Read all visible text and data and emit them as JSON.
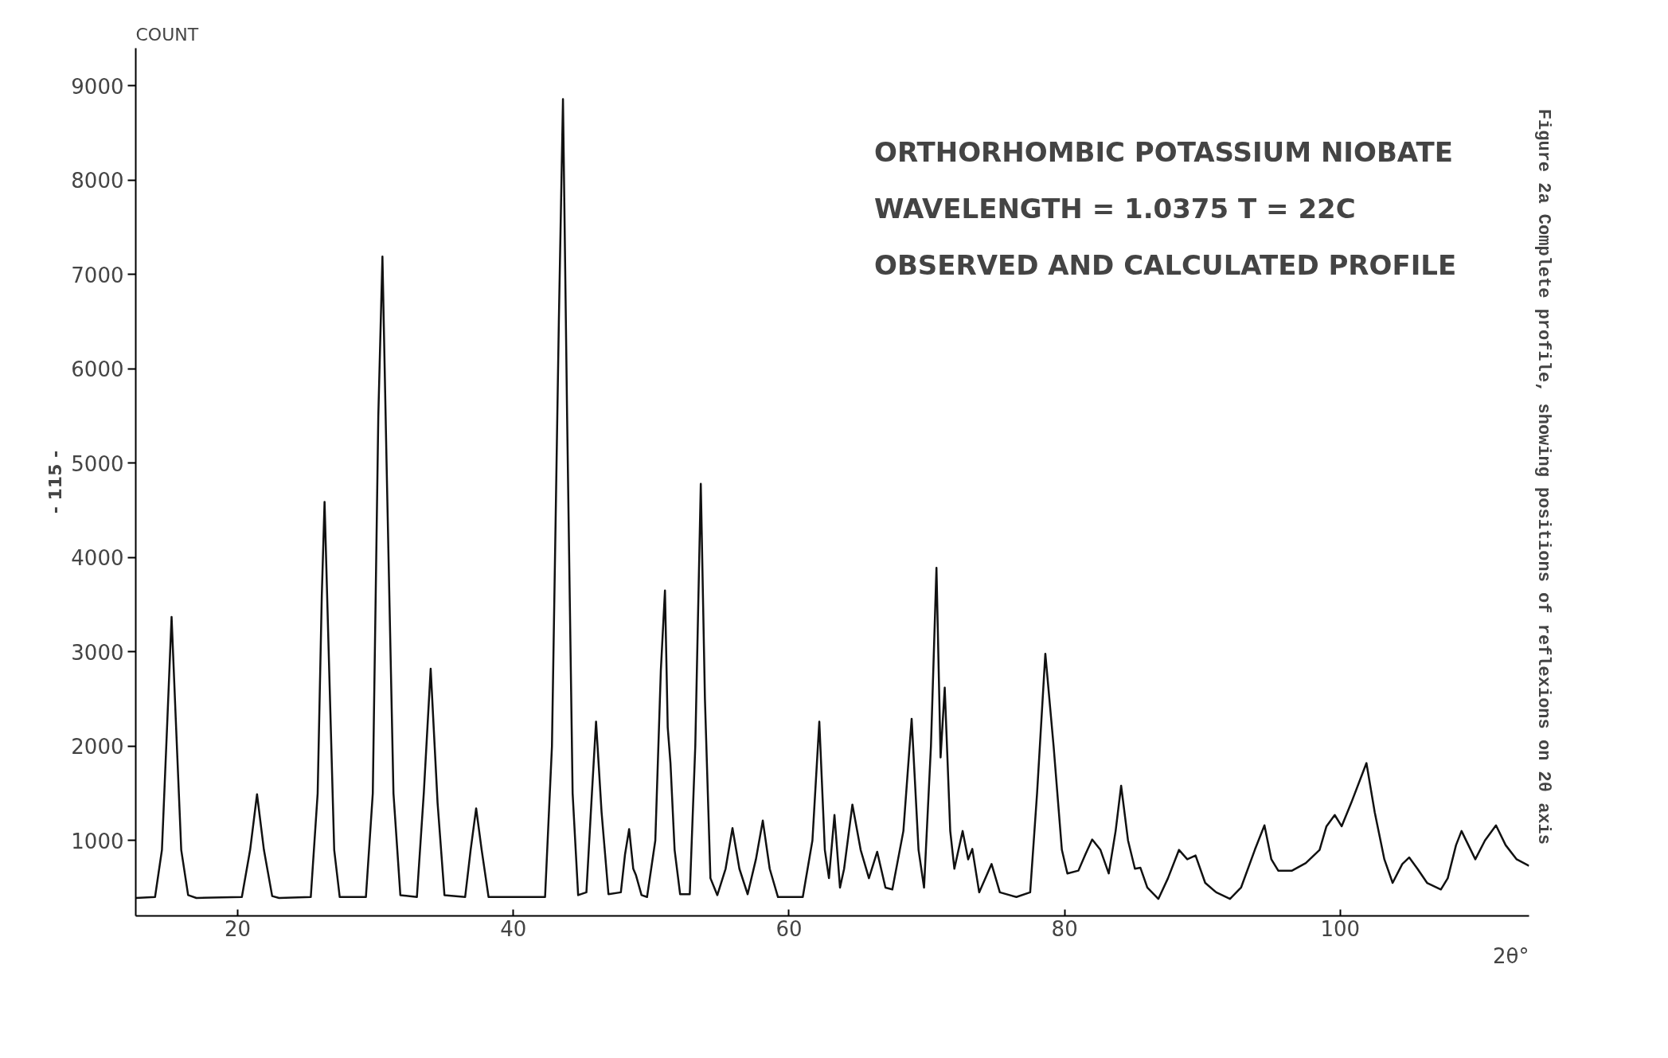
{
  "chart_data": {
    "type": "line",
    "ylabel": "COUNT",
    "xlabel": "2θ°",
    "annotations": [
      "ORTHORHOMBIC  POTASSIUM  NIOBATE",
      "WAVELENGTH = 1.0375     T = 22C",
      "OBSERVED  AND  CALCULATED  PROFILE",
      "Figure 2a  Complete profile, showing positions of reflexions on 2θ axis",
      "- 115 -"
    ],
    "xlim": [
      12.6,
      113.7
    ],
    "ylim": [
      200,
      9400
    ],
    "xticks": [
      20,
      40,
      60,
      80,
      100
    ],
    "yticks": [
      1000,
      2000,
      3000,
      4000,
      5000,
      6000,
      7000,
      8000,
      9000
    ],
    "grid": false,
    "marker": "none",
    "line_style": "solid",
    "series": [
      {
        "color": "#111111",
        "x": [
          12.6,
          14.0,
          14.5,
          14.9,
          15.2,
          15.5,
          15.9,
          16.4,
          17,
          20.3,
          20.9,
          21.4,
          21.9,
          22.5,
          23,
          25.3,
          25.8,
          26.1,
          26.3,
          26.6,
          27,
          27.4,
          29.3,
          29.8,
          30.2,
          30.5,
          30.8,
          31.3,
          31.8,
          33.0,
          33.5,
          34.0,
          34.5,
          35.0,
          36.5,
          36.9,
          37.3,
          37.7,
          38.2,
          42.3,
          42.8,
          43.3,
          43.6,
          43.9,
          44.3,
          44.7,
          45.3,
          45.7,
          46.0,
          46.4,
          46.9,
          47.8,
          48.1,
          48.4,
          48.7,
          48.9,
          49.3,
          49.7,
          50.3,
          50.7,
          51.0,
          51.2,
          51.4,
          51.7,
          52.1,
          52.8,
          53.2,
          53.6,
          53.9,
          54.3,
          54.8,
          55.4,
          55.9,
          56.4,
          57.0,
          57.6,
          58.1,
          58.6,
          59.2,
          61.0,
          61.7,
          62.2,
          62.6,
          62.9,
          63.3,
          63.7,
          64.0,
          64.6,
          65.2,
          65.8,
          66.4,
          67.0,
          67.5,
          68.3,
          68.9,
          69.4,
          69.8,
          70.3,
          70.7,
          71.0,
          71.3,
          71.7,
          72.0,
          72.6,
          73.0,
          73.3,
          73.8,
          74.7,
          75.3,
          76.5,
          77.5,
          78.0,
          78.6,
          79.2,
          79.8,
          80.2,
          81.0,
          81.5,
          82.0,
          82.6,
          83.2,
          83.7,
          84.1,
          84.6,
          85.1,
          85.5,
          86.0,
          86.8,
          87.5,
          88.3,
          88.9,
          89.5,
          90.2,
          91.0,
          92.0,
          92.8,
          93.8,
          94.5,
          95.0,
          95.5,
          96.5,
          97.5,
          98.5,
          99.0,
          99.6,
          100.1,
          100.8,
          101.9,
          102.5,
          103.2,
          103.8,
          104.5,
          105.0,
          105.6,
          106.3,
          107.3,
          107.8,
          108.4,
          108.8,
          109.3,
          109.8,
          110.5,
          111.3,
          112.0,
          112.8,
          113.7
        ],
        "values": [
          390,
          400,
          900,
          2300,
          3370,
          2300,
          900,
          420,
          390,
          400,
          900,
          1490,
          900,
          410,
          390,
          400,
          1500,
          3600,
          4590,
          3000,
          900,
          400,
          400,
          1500,
          5500,
          7190,
          5000,
          1500,
          420,
          400,
          1500,
          2820,
          1400,
          420,
          400,
          900,
          1340,
          900,
          400,
          400,
          2000,
          6500,
          8860,
          5500,
          1500,
          420,
          450,
          1500,
          2260,
          1300,
          430,
          450,
          850,
          1120,
          700,
          630,
          420,
          400,
          1000,
          2800,
          3650,
          2200,
          1820,
          900,
          430,
          430,
          2000,
          4780,
          2500,
          600,
          420,
          700,
          1130,
          700,
          430,
          800,
          1210,
          700,
          400,
          400,
          1000,
          2260,
          900,
          600,
          1270,
          500,
          700,
          1380,
          900,
          600,
          880,
          500,
          480,
          1100,
          2290,
          900,
          500,
          2000,
          3890,
          1880,
          2620,
          1100,
          700,
          1100,
          800,
          910,
          450,
          750,
          450,
          400,
          450,
          1500,
          2980,
          2000,
          900,
          650,
          680,
          850,
          1010,
          900,
          650,
          1100,
          1580,
          1000,
          700,
          710,
          500,
          380,
          600,
          900,
          800,
          840,
          550,
          450,
          380,
          500,
          900,
          1160,
          800,
          680,
          680,
          760,
          900,
          1150,
          1270,
          1150,
          1400,
          1820,
          1300,
          800,
          550,
          750,
          820,
          700,
          550,
          480,
          600,
          950,
          1100,
          950,
          800,
          1000,
          1160,
          950,
          800,
          730
        ]
      }
    ]
  }
}
